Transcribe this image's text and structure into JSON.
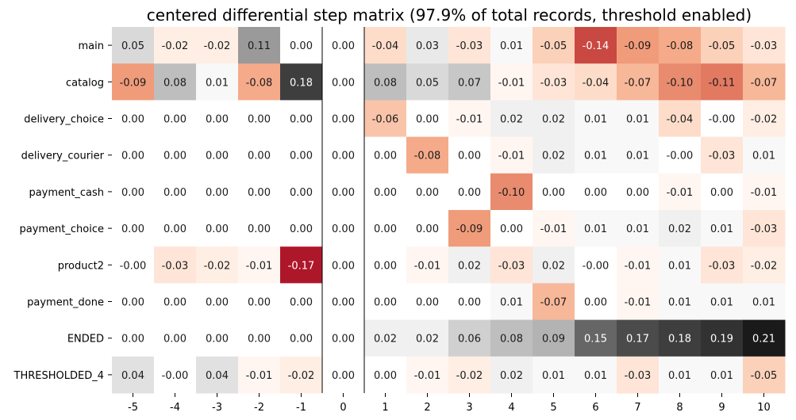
{
  "chart_data": {
    "type": "heatmap",
    "title": "centered differential step matrix (97.9% of total records, threshold enabled)",
    "xlabel": "",
    "ylabel": "",
    "x": [
      "-5",
      "-4",
      "-3",
      "-2",
      "-1",
      "0",
      "1",
      "2",
      "3",
      "4",
      "5",
      "6",
      "7",
      "8",
      "9",
      "10"
    ],
    "y": [
      "main",
      "catalog",
      "delivery_choice",
      "delivery_courier",
      "payment_cash",
      "payment_choice",
      "product2",
      "payment_done",
      "ENDED",
      "THRESHOLDED_4"
    ],
    "values": [
      [
        0.05,
        -0.02,
        -0.02,
        0.11,
        0.0,
        0.0,
        -0.04,
        0.03,
        -0.03,
        0.01,
        -0.05,
        -0.14,
        -0.09,
        -0.08,
        -0.05,
        -0.03
      ],
      [
        -0.09,
        0.08,
        0.01,
        -0.08,
        0.18,
        0.0,
        0.08,
        0.05,
        0.07,
        -0.01,
        -0.03,
        -0.04,
        -0.07,
        -0.1,
        -0.11,
        -0.07
      ],
      [
        0.0,
        0.0,
        0.0,
        0.0,
        0.0,
        0.0,
        -0.06,
        0.0,
        -0.01,
        0.02,
        0.02,
        0.01,
        0.01,
        -0.04,
        -0.0,
        -0.02
      ],
      [
        0.0,
        0.0,
        0.0,
        0.0,
        0.0,
        0.0,
        0.0,
        -0.08,
        0.0,
        -0.01,
        0.02,
        0.01,
        0.01,
        -0.0,
        -0.03,
        0.01
      ],
      [
        0.0,
        0.0,
        0.0,
        0.0,
        0.0,
        0.0,
        0.0,
        0.0,
        0.0,
        -0.1,
        0.0,
        0.0,
        0.0,
        -0.01,
        0.0,
        -0.01
      ],
      [
        0.0,
        0.0,
        0.0,
        0.0,
        0.0,
        0.0,
        0.0,
        0.0,
        -0.09,
        0.0,
        -0.01,
        0.01,
        0.01,
        0.02,
        0.01,
        -0.03
      ],
      [
        -0.0,
        -0.03,
        -0.02,
        -0.01,
        -0.17,
        0.0,
        0.0,
        -0.01,
        0.02,
        -0.03,
        0.02,
        -0.0,
        -0.01,
        0.01,
        -0.03,
        -0.02
      ],
      [
        0.0,
        0.0,
        0.0,
        0.0,
        0.0,
        0.0,
        0.0,
        0.0,
        0.0,
        0.01,
        -0.07,
        0.0,
        -0.01,
        0.01,
        0.01,
        0.01
      ],
      [
        0.0,
        0.0,
        0.0,
        0.0,
        0.0,
        0.0,
        0.02,
        0.02,
        0.06,
        0.08,
        0.09,
        0.15,
        0.17,
        0.18,
        0.19,
        0.21
      ],
      [
        0.04,
        -0.0,
        0.04,
        -0.01,
        -0.02,
        0.0,
        0.0,
        -0.01,
        -0.02,
        0.02,
        0.01,
        0.01,
        -0.03,
        0.01,
        0.01,
        -0.05
      ]
    ],
    "color_range": [
      -0.21,
      0.21
    ],
    "colormap": "RdGy",
    "separator_columns": [
      "0"
    ],
    "grid": false,
    "legend": "none"
  }
}
